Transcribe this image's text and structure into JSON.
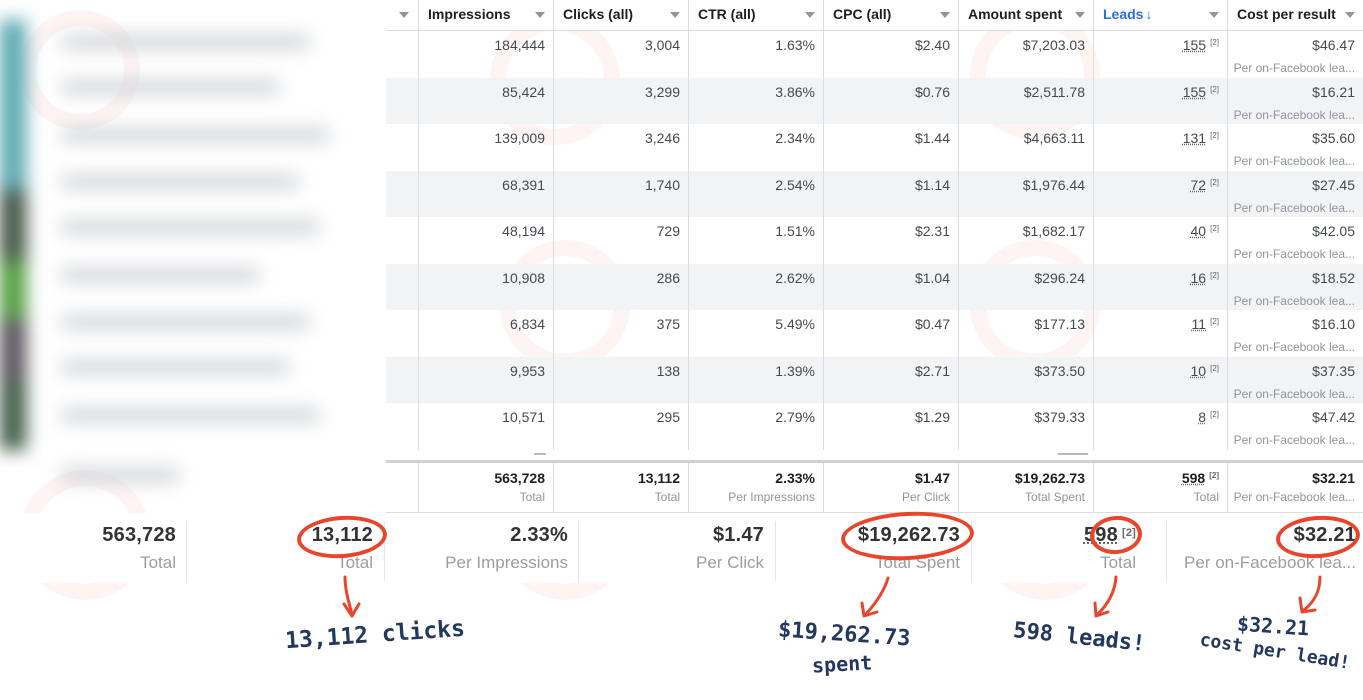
{
  "columns": [
    {
      "label": "Impressions",
      "sorted": false
    },
    {
      "label": "Clicks (all)",
      "sorted": false
    },
    {
      "label": "CTR (all)",
      "sorted": false
    },
    {
      "label": "CPC (all)",
      "sorted": false
    },
    {
      "label": "Amount spent",
      "sorted": false
    },
    {
      "label": "Leads",
      "sorted": true,
      "sort_icon": "arrow-down-icon"
    },
    {
      "label": "Cost per result",
      "sorted": false
    }
  ],
  "rows": [
    {
      "impressions": "184,444",
      "clicks": "3,004",
      "ctr": "1.63%",
      "cpc": "$2.40",
      "spent": "$7,203.03",
      "leads": "155",
      "cpr": "$46.47",
      "cpr_sub": "Per on-Facebook lea..."
    },
    {
      "impressions": "85,424",
      "clicks": "3,299",
      "ctr": "3.86%",
      "cpc": "$0.76",
      "spent": "$2,511.78",
      "leads": "155",
      "cpr": "$16.21",
      "cpr_sub": "Per on-Facebook lea..."
    },
    {
      "impressions": "139,009",
      "clicks": "3,246",
      "ctr": "2.34%",
      "cpc": "$1.44",
      "spent": "$4,663.11",
      "leads": "131",
      "cpr": "$35.60",
      "cpr_sub": "Per on-Facebook lea..."
    },
    {
      "impressions": "68,391",
      "clicks": "1,740",
      "ctr": "2.54%",
      "cpc": "$1.14",
      "spent": "$1,976.44",
      "leads": "72",
      "cpr": "$27.45",
      "cpr_sub": "Per on-Facebook lea..."
    },
    {
      "impressions": "48,194",
      "clicks": "729",
      "ctr": "1.51%",
      "cpc": "$2.31",
      "spent": "$1,682.17",
      "leads": "40",
      "cpr": "$42.05",
      "cpr_sub": "Per on-Facebook lea..."
    },
    {
      "impressions": "10,908",
      "clicks": "286",
      "ctr": "2.62%",
      "cpc": "$1.04",
      "spent": "$296.24",
      "leads": "16",
      "cpr": "$18.52",
      "cpr_sub": "Per on-Facebook lea..."
    },
    {
      "impressions": "6,834",
      "clicks": "375",
      "ctr": "5.49%",
      "cpc": "$0.47",
      "spent": "$177.13",
      "leads": "11",
      "cpr": "$16.10",
      "cpr_sub": "Per on-Facebook lea..."
    },
    {
      "impressions": "9,953",
      "clicks": "138",
      "ctr": "1.39%",
      "cpc": "$2.71",
      "spent": "$373.50",
      "leads": "10",
      "cpr": "$37.35",
      "cpr_sub": "Per on-Facebook lea..."
    },
    {
      "impressions": "10,571",
      "clicks": "295",
      "ctr": "2.79%",
      "cpc": "$1.29",
      "spent": "$379.33",
      "leads": "8",
      "cpr": "$47.42",
      "cpr_sub": "Per on-Facebook lea..."
    }
  ],
  "leads_superscript": "[2]",
  "totals": {
    "impressions": "563,728",
    "impressions_sub": "Total",
    "clicks": "13,112",
    "clicks_sub": "Total",
    "ctr": "2.33%",
    "ctr_sub": "Per Impressions",
    "cpc": "$1.47",
    "cpc_sub": "Per Click",
    "spent": "$19,262.73",
    "spent_sub": "Total Spent",
    "leads": "598",
    "leads_sub": "Total",
    "cpr": "$32.21",
    "cpr_sub": "Per on-Facebook lea..."
  },
  "zoom": {
    "impressions": "563,728",
    "impressions_sub": "Total",
    "clicks": "13,112",
    "clicks_sub": "Total",
    "ctr": "2.33%",
    "ctr_sub": "Per Impressions",
    "cpc": "$1.47",
    "cpc_sub": "Per Click",
    "spent": "$19,262.73",
    "spent_sub": "Total Spent",
    "leads": "598",
    "leads_sub": "Total",
    "cpr": "$32.21",
    "cpr_sub": "Per on-Facebook lea..."
  },
  "annotations": {
    "clicks": "13,112 clicks",
    "spent_1": "$19,262.73",
    "spent_2": "spent",
    "leads": "598 leads!",
    "cpl_1": "$32.21",
    "cpl_2": "cost per lead!"
  },
  "colors": {
    "highlight": "#e8452c",
    "annotation_text": "#23385e",
    "sort_accent": "#2d6cdf"
  }
}
